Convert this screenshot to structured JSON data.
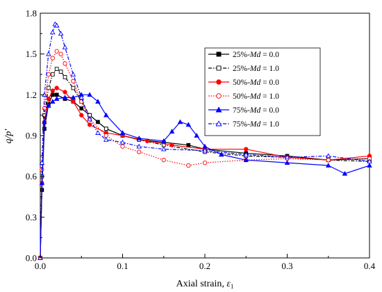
{
  "chart_data": {
    "type": "line",
    "xlabel": "Axial strain, ε1",
    "ylabel": "q/p′",
    "xlim": [
      0.0,
      0.4
    ],
    "ylim": [
      0.0,
      1.8
    ],
    "x_ticks": [
      "0.0",
      "0.1",
      "0.2",
      "0.3",
      "0.4"
    ],
    "y_ticks": [
      "0.0",
      "0.3",
      "0.6",
      "0.9",
      "1.2",
      "1.5",
      "1.8"
    ],
    "grid": false,
    "legend_position": "top-right",
    "series": [
      {
        "name": "25%-Md = 0.0",
        "label_prefix": "25%-",
        "label_var": "Md",
        "label_suffix": " = 0.0",
        "color": "#000000",
        "marker": "square",
        "filled": true,
        "dash": "solid",
        "x": [
          0,
          0.002,
          0.005,
          0.01,
          0.015,
          0.02,
          0.03,
          0.04,
          0.05,
          0.06,
          0.07,
          0.08,
          0.1,
          0.12,
          0.15,
          0.18,
          0.2,
          0.25,
          0.3,
          0.35,
          0.4
        ],
        "y": [
          0,
          0.5,
          0.95,
          1.13,
          1.2,
          1.2,
          1.17,
          1.15,
          1.1,
          1.05,
          1.0,
          0.95,
          0.9,
          0.87,
          0.85,
          0.83,
          0.8,
          0.77,
          0.75,
          0.72,
          0.73
        ]
      },
      {
        "name": "25%-Md = 1.0",
        "label_prefix": "25%-",
        "label_var": "Md",
        "label_suffix": " = 1.0",
        "color": "#000000",
        "marker": "square",
        "filled": false,
        "dash": "dashdot",
        "x": [
          0,
          0.002,
          0.005,
          0.01,
          0.015,
          0.02,
          0.025,
          0.03,
          0.04,
          0.05,
          0.06,
          0.08,
          0.1,
          0.12,
          0.15,
          0.2,
          0.25,
          0.3,
          0.35,
          0.4
        ],
        "y": [
          0,
          0.6,
          1.05,
          1.25,
          1.35,
          1.39,
          1.37,
          1.33,
          1.25,
          1.15,
          1.05,
          0.95,
          0.9,
          0.87,
          0.83,
          0.78,
          0.75,
          0.74,
          0.72,
          0.71
        ]
      },
      {
        "name": "50%-Md = 0.0",
        "label_prefix": "50%-",
        "label_var": "Md",
        "label_suffix": " = 0.0",
        "color": "#ff0000",
        "marker": "circle",
        "filled": true,
        "dash": "solid",
        "x": [
          0,
          0.002,
          0.005,
          0.01,
          0.015,
          0.02,
          0.03,
          0.04,
          0.05,
          0.06,
          0.08,
          0.1,
          0.13,
          0.16,
          0.2,
          0.25,
          0.3,
          0.35,
          0.4
        ],
        "y": [
          0,
          0.55,
          1.0,
          1.17,
          1.23,
          1.25,
          1.22,
          1.15,
          1.05,
          0.98,
          0.92,
          0.9,
          0.86,
          0.83,
          0.8,
          0.8,
          0.74,
          0.72,
          0.75
        ]
      },
      {
        "name": "50%-Md = 1.0",
        "label_prefix": "50%-",
        "label_var": "Md",
        "label_suffix": " = 1.0",
        "color": "#ff0000",
        "marker": "circle",
        "filled": false,
        "dash": "dot",
        "x": [
          0,
          0.002,
          0.005,
          0.01,
          0.015,
          0.02,
          0.025,
          0.03,
          0.04,
          0.05,
          0.06,
          0.08,
          0.1,
          0.12,
          0.15,
          0.18,
          0.2,
          0.25,
          0.3,
          0.35,
          0.4
        ],
        "y": [
          0,
          0.65,
          1.1,
          1.35,
          1.47,
          1.52,
          1.5,
          1.43,
          1.3,
          1.15,
          1.02,
          0.9,
          0.82,
          0.78,
          0.72,
          0.68,
          0.7,
          0.72,
          0.73,
          0.72,
          0.73
        ]
      },
      {
        "name": "75%-Md = 0.0",
        "label_prefix": "75%-",
        "label_var": "Md",
        "label_suffix": " = 0.0",
        "color": "#0000ff",
        "marker": "triangle",
        "filled": true,
        "dash": "solid",
        "x": [
          0,
          0.002,
          0.005,
          0.01,
          0.015,
          0.02,
          0.03,
          0.04,
          0.05,
          0.06,
          0.07,
          0.08,
          0.1,
          0.12,
          0.15,
          0.16,
          0.17,
          0.18,
          0.19,
          0.2,
          0.22,
          0.25,
          0.3,
          0.35,
          0.37,
          0.4
        ],
        "y": [
          0,
          0.55,
          1.0,
          1.12,
          1.15,
          1.17,
          1.18,
          1.18,
          1.2,
          1.2,
          1.15,
          1.05,
          0.92,
          0.88,
          0.86,
          0.93,
          1.0,
          0.98,
          0.9,
          0.82,
          0.76,
          0.72,
          0.7,
          0.68,
          0.62,
          0.68
        ]
      },
      {
        "name": "75%-Md = 1.0",
        "label_prefix": "75%-",
        "label_var": "Md",
        "label_suffix": " = 1.0",
        "color": "#0000ff",
        "marker": "triangle",
        "filled": false,
        "dash": "dashdot",
        "x": [
          0,
          0.002,
          0.005,
          0.01,
          0.015,
          0.018,
          0.02,
          0.025,
          0.03,
          0.04,
          0.05,
          0.06,
          0.07,
          0.08,
          0.1,
          0.12,
          0.15,
          0.2,
          0.25,
          0.3,
          0.35,
          0.4
        ],
        "y": [
          0,
          0.7,
          1.2,
          1.5,
          1.66,
          1.72,
          1.71,
          1.65,
          1.55,
          1.35,
          1.18,
          1.02,
          0.92,
          0.87,
          0.85,
          0.82,
          0.8,
          0.79,
          0.76,
          0.74,
          0.75,
          0.71
        ]
      }
    ]
  }
}
